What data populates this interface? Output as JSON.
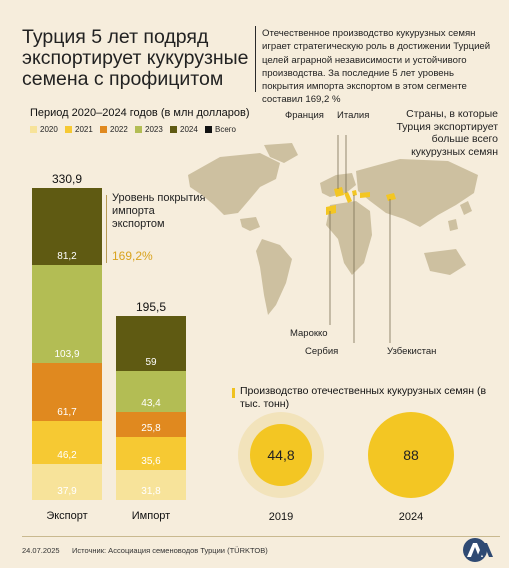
{
  "title": "Турция 5 лет подряд экспортирует кукурузные семена с профицитом",
  "intro": "Отечественное производство кукурузных семян играет стратегическую роль в достижении Турцией целей аграрной независимости и устойчивого производства. За последние 5 лет уровень покрытия импорта экспортом в этом сегменте составил 169,2 %",
  "period_label": "Период 2020–2024 годов (в млн долларов)",
  "legend": [
    {
      "label": "2020",
      "color": "#f7e39a"
    },
    {
      "label": "2021",
      "color": "#f6c933"
    },
    {
      "label": "2022",
      "color": "#e0891f"
    },
    {
      "label": "2023",
      "color": "#b3bd54"
    },
    {
      "label": "2024",
      "color": "#5f5a12"
    },
    {
      "label": "Всего",
      "color": "#111111"
    }
  ],
  "chart_data": {
    "type": "bar",
    "stacked": true,
    "categories": [
      "Экспорт",
      "Импорт"
    ],
    "totals": [
      "330,9",
      "195,5"
    ],
    "series": [
      {
        "name": "2020",
        "values": [
          37.9,
          31.8
        ],
        "labels": [
          "37,9",
          "31,8"
        ],
        "color": "#f7e39a"
      },
      {
        "name": "2021",
        "values": [
          46.2,
          35.6
        ],
        "labels": [
          "46,2",
          "35,6"
        ],
        "color": "#f6c933"
      },
      {
        "name": "2022",
        "values": [
          61.7,
          25.8
        ],
        "labels": [
          "61,7",
          "25,8"
        ],
        "color": "#e0891f"
      },
      {
        "name": "2023",
        "values": [
          103.9,
          43.4
        ],
        "labels": [
          "103,9",
          "43,4"
        ],
        "color": "#b3bd54"
      },
      {
        "name": "2024",
        "values": [
          81.2,
          59
        ],
        "labels": [
          "81,2",
          "59"
        ],
        "color": "#5f5a12"
      }
    ]
  },
  "coverage": {
    "label": "Уровень покрытия импорта экспортом",
    "value": "169,2%"
  },
  "map": {
    "caption": "Страны, в которые Турция экспортирует больше всего кукурузных семян",
    "countries": [
      "Франция",
      "Италия",
      "Марокко",
      "Сербия",
      "Узбекистан"
    ],
    "land_color": "#cdc0a0",
    "highlight_color": "#f3c623"
  },
  "production": {
    "title": "Производство отечественных кукурузных семян (в тыс. тонн)",
    "items": [
      {
        "year": "2019",
        "value": "44,8",
        "value_num": 44.8
      },
      {
        "year": "2024",
        "value": "88",
        "value_num": 88
      }
    ]
  },
  "footer": {
    "date": "24.07.2025",
    "source": "Источник: Ассоциация семеноводов Турции (TÜRKTOB)",
    "logo_text": "AA"
  }
}
